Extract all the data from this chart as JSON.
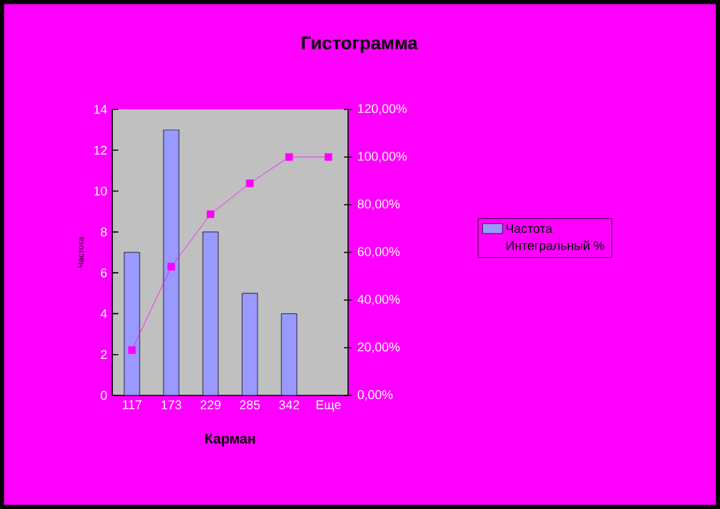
{
  "chart_data": {
    "type": "bar",
    "title": "Гистограмма",
    "xlabel": "Карман",
    "ylabel": "Частота",
    "categories": [
      "117",
      "173",
      "229",
      "285",
      "342",
      "Еще"
    ],
    "series": [
      {
        "name": "Частота",
        "color": "#9999ff",
        "values": [
          7,
          13,
          8,
          5,
          4,
          0
        ]
      },
      {
        "name": "Интегральный %",
        "type": "line",
        "axis": "y2",
        "color": "#ff00ff",
        "marker": "square",
        "values": [
          19,
          54,
          76,
          89,
          100,
          100
        ]
      }
    ],
    "ylim": [
      0,
      14
    ],
    "yticks": [
      0,
      2,
      4,
      6,
      8,
      10,
      12,
      14
    ],
    "y2lim": [
      0,
      120
    ],
    "y2ticks": [
      {
        "value": 0,
        "label": "0,00%"
      },
      {
        "value": 20,
        "label": "20,00%"
      },
      {
        "value": 40,
        "label": "40,00%"
      },
      {
        "value": 60,
        "label": "60,00%"
      },
      {
        "value": 80,
        "label": "80,00%"
      },
      {
        "value": 100,
        "label": "100,00%"
      },
      {
        "value": 120,
        "label": "120,00%"
      }
    ],
    "legend": "right"
  }
}
